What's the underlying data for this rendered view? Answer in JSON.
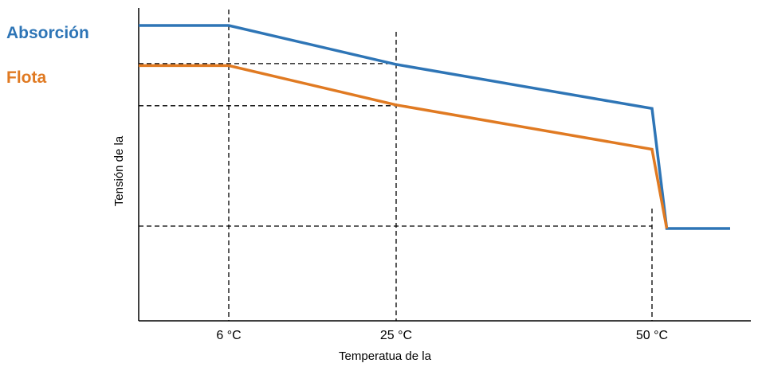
{
  "chart_data": {
    "type": "line",
    "xlabel": "Temperatua de la",
    "ylabel": "Tensión de la",
    "x_ticks": [
      "6 °C",
      "25 °C",
      "50 °C"
    ],
    "grid": false,
    "legend_placement": "left",
    "series": [
      {
        "name": "Absorción",
        "color": "#2E75B6",
        "points": [
          [
            -4.5,
            1.0
          ],
          [
            6,
            1.0
          ],
          [
            25,
            0.806
          ],
          [
            50,
            0.586
          ],
          [
            51.7,
            -0.012
          ],
          [
            59,
            -0.012
          ]
        ]
      },
      {
        "name": "Flota",
        "color": "#E07A22",
        "points": [
          [
            -4.5,
            0.8
          ],
          [
            6,
            0.8
          ],
          [
            25,
            0.604
          ],
          [
            50,
            0.383
          ],
          [
            51.7,
            -0.012
          ]
        ]
      }
    ],
    "reference_levels": [
      0.81,
      0.6,
      0.0
    ]
  }
}
